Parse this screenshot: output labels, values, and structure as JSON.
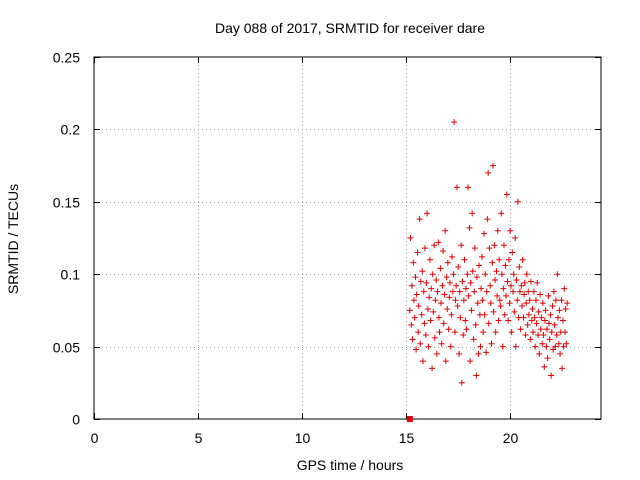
{
  "chart_data": {
    "type": "scatter",
    "title": "Day 088 of 2017, SRMTID for receiver dare",
    "xlabel": "GPS time / hours",
    "ylabel": "SRMTID / TECUs",
    "xlim": [
      0,
      24.4
    ],
    "ylim": [
      0,
      0.25
    ],
    "xticks": [
      0,
      5,
      10,
      15,
      20
    ],
    "xtick_labels": [
      "0",
      "5",
      "10",
      "15",
      "20"
    ],
    "yticks": [
      0,
      0.05,
      0.1,
      0.15,
      0.2,
      0.25
    ],
    "ytick_labels": [
      "0",
      "0.05",
      "0.1",
      "0.15",
      "0.2",
      "0.25"
    ],
    "grid": true,
    "marker": "+",
    "color": "#e00000",
    "series": [
      {
        "name": "SRMTID",
        "start_marker": {
          "x": 15.2,
          "y": 0.0
        },
        "x": [
          15.2,
          15.23,
          15.27,
          15.3,
          15.33,
          15.37,
          15.4,
          15.43,
          15.47,
          15.5,
          15.53,
          15.57,
          15.6,
          15.63,
          15.67,
          15.7,
          15.73,
          15.77,
          15.8,
          15.83,
          15.87,
          15.9,
          15.93,
          15.97,
          16.0,
          16.03,
          16.07,
          16.1,
          16.13,
          16.17,
          16.2,
          16.23,
          16.27,
          16.3,
          16.33,
          16.37,
          16.4,
          16.43,
          16.47,
          16.5,
          16.53,
          16.57,
          16.6,
          16.63,
          16.67,
          16.7,
          16.73,
          16.77,
          16.8,
          16.83,
          16.87,
          16.9,
          16.93,
          16.97,
          17.0,
          17.03,
          17.07,
          17.1,
          17.13,
          17.17,
          17.2,
          17.23,
          17.27,
          17.3,
          17.33,
          17.37,
          17.4,
          17.43,
          17.47,
          17.5,
          17.53,
          17.57,
          17.6,
          17.63,
          17.67,
          17.7,
          17.73,
          17.77,
          17.8,
          17.83,
          17.87,
          17.9,
          17.93,
          17.97,
          18.0,
          18.03,
          18.07,
          18.1,
          18.13,
          18.17,
          18.2,
          18.23,
          18.27,
          18.3,
          18.33,
          18.37,
          18.4,
          18.43,
          18.47,
          18.5,
          18.53,
          18.57,
          18.6,
          18.63,
          18.67,
          18.7,
          18.73,
          18.77,
          18.8,
          18.83,
          18.87,
          18.9,
          18.93,
          18.97,
          19.0,
          19.03,
          19.07,
          19.1,
          19.13,
          19.17,
          19.2,
          19.23,
          19.27,
          19.3,
          19.33,
          19.37,
          19.4,
          19.43,
          19.47,
          19.5,
          19.53,
          19.57,
          19.6,
          19.63,
          19.67,
          19.7,
          19.73,
          19.77,
          19.8,
          19.83,
          19.87,
          19.9,
          19.93,
          19.97,
          20.0,
          20.03,
          20.07,
          20.1,
          20.13,
          20.17,
          20.2,
          20.23,
          20.27,
          20.3,
          20.33,
          20.37,
          20.4,
          20.43,
          20.47,
          20.5,
          20.53,
          20.57,
          20.6,
          20.63,
          20.67,
          20.7,
          20.73,
          20.77,
          20.8,
          20.83,
          20.87,
          20.9,
          20.93,
          20.97,
          21.0,
          21.03,
          21.07,
          21.1,
          21.13,
          21.17,
          21.2,
          21.23,
          21.27,
          21.3,
          21.33,
          21.37,
          21.4,
          21.43,
          21.47,
          21.5,
          21.53,
          21.57,
          21.6,
          21.63,
          21.67,
          21.7,
          21.73,
          21.77,
          21.8,
          21.83,
          21.87,
          21.9,
          21.93,
          21.97,
          22.0,
          22.03,
          22.07,
          22.1,
          22.13,
          22.17,
          22.2,
          22.23,
          22.27,
          22.3,
          22.33,
          22.37,
          22.4,
          22.43,
          22.47,
          22.5,
          22.53,
          22.57,
          22.6,
          22.63,
          22.67,
          22.7,
          22.73,
          22.77
        ],
        "y": [
          0.075,
          0.125,
          0.065,
          0.092,
          0.055,
          0.108,
          0.082,
          0.07,
          0.098,
          0.048,
          0.086,
          0.115,
          0.06,
          0.078,
          0.138,
          0.052,
          0.095,
          0.072,
          0.102,
          0.04,
          0.088,
          0.066,
          0.118,
          0.058,
          0.094,
          0.142,
          0.076,
          0.05,
          0.084,
          0.11,
          0.068,
          0.09,
          0.035,
          0.1,
          0.074,
          0.12,
          0.056,
          0.082,
          0.096,
          0.045,
          0.088,
          0.122,
          0.07,
          0.06,
          0.104,
          0.08,
          0.052,
          0.092,
          0.116,
          0.066,
          0.086,
          0.13,
          0.04,
          0.098,
          0.076,
          0.108,
          0.062,
          0.084,
          0.094,
          0.05,
          0.072,
          0.112,
          0.088,
          0.1,
          0.205,
          0.06,
          0.082,
          0.092,
          0.16,
          0.078,
          0.105,
          0.045,
          0.088,
          0.07,
          0.12,
          0.025,
          0.095,
          0.058,
          0.082,
          0.11,
          0.068,
          0.09,
          0.062,
          0.1,
          0.16,
          0.085,
          0.132,
          0.04,
          0.094,
          0.075,
          0.142,
          0.102,
          0.055,
          0.088,
          0.118,
          0.065,
          0.03,
          0.098,
          0.08,
          0.045,
          0.106,
          0.072,
          0.05,
          0.09,
          0.112,
          0.082,
          0.06,
          0.128,
          0.072,
          0.1,
          0.046,
          0.088,
          0.138,
          0.17,
          0.066,
          0.118,
          0.092,
          0.08,
          0.052,
          0.108,
          0.175,
          0.074,
          0.12,
          0.096,
          0.06,
          0.102,
          0.085,
          0.13,
          0.068,
          0.11,
          0.082,
          0.078,
          0.142,
          0.1,
          0.05,
          0.09,
          0.12,
          0.072,
          0.106,
          0.085,
          0.155,
          0.095,
          0.068,
          0.11,
          0.08,
          0.13,
          0.092,
          0.06,
          0.115,
          0.088,
          0.1,
          0.074,
          0.125,
          0.05,
          0.096,
          0.082,
          0.15,
          0.07,
          0.105,
          0.088,
          0.062,
          0.092,
          0.078,
          0.11,
          0.07,
          0.086,
          0.094,
          0.058,
          0.08,
          0.1,
          0.065,
          0.088,
          0.072,
          0.082,
          0.055,
          0.095,
          0.068,
          0.076,
          0.06,
          0.088,
          0.07,
          0.05,
          0.082,
          0.066,
          0.094,
          0.058,
          0.074,
          0.045,
          0.086,
          0.062,
          0.07,
          0.052,
          0.08,
          0.058,
          0.036,
          0.068,
          0.075,
          0.05,
          0.062,
          0.042,
          0.085,
          0.066,
          0.055,
          0.072,
          0.03,
          0.06,
          0.078,
          0.048,
          0.088,
          0.065,
          0.05,
          0.082,
          0.058,
          0.1,
          0.07,
          0.052,
          0.075,
          0.045,
          0.06,
          0.082,
          0.035,
          0.068,
          0.05,
          0.09,
          0.06,
          0.076,
          0.052,
          0.08
        ]
      }
    ]
  }
}
